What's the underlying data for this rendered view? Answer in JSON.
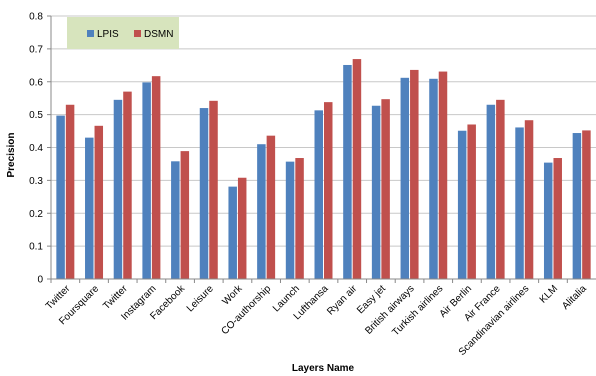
{
  "chart_data": {
    "type": "bar",
    "title": "",
    "xlabel": "Layers Name",
    "ylabel": "Precision",
    "ylim": [
      0,
      0.8
    ],
    "yticks": [
      "0",
      "0.1",
      "0.2",
      "0.3",
      "0.4",
      "0.5",
      "0.6",
      "0.7",
      "0.8"
    ],
    "grid": true,
    "legend_position": "top-left",
    "categories": [
      "Twitter",
      "Foursquare",
      "Twitter",
      "Instagram",
      "Facebook",
      "Leisure",
      "Work",
      "CO-authorship",
      "Launch",
      "Lufthansa",
      "Ryan air",
      "Easy jet",
      "British airways",
      "Turkish airlines",
      "Air Berlin",
      "Air France",
      "Scandinavian airlines",
      "KLM",
      "Alitalia"
    ],
    "series": [
      {
        "name": "LPIS",
        "color": "#4F81BD",
        "values": [
          0.497,
          0.43,
          0.545,
          0.598,
          0.358,
          0.52,
          0.281,
          0.41,
          0.357,
          0.513,
          0.651,
          0.527,
          0.612,
          0.609,
          0.451,
          0.53,
          0.461,
          0.354,
          0.444
        ]
      },
      {
        "name": "DSMN",
        "color": "#C0504D",
        "values": [
          0.53,
          0.466,
          0.57,
          0.617,
          0.389,
          0.542,
          0.308,
          0.436,
          0.368,
          0.538,
          0.669,
          0.547,
          0.636,
          0.631,
          0.47,
          0.545,
          0.483,
          0.368,
          0.452
        ]
      }
    ],
    "legend_background": "#D7E4BD",
    "grid_color": "#C8C8C8"
  }
}
